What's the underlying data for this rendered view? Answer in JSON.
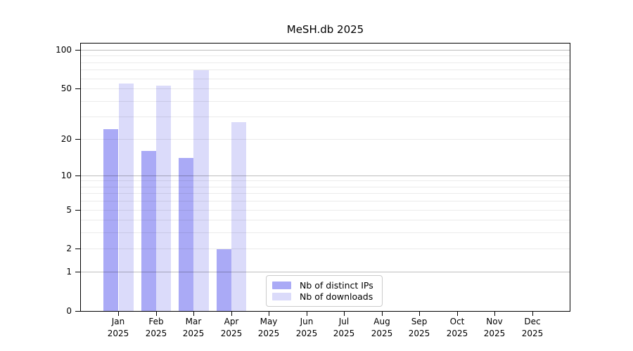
{
  "chart_data": {
    "type": "bar",
    "title": "MeSH.db 2025",
    "scale": "log1p",
    "ylim": [
      0,
      112
    ],
    "yticks": [
      0,
      1,
      2,
      5,
      10,
      20,
      50,
      100
    ],
    "grid_major_values": [
      1,
      10,
      100
    ],
    "grid_minor_values": [
      2,
      3,
      4,
      5,
      6,
      7,
      8,
      9,
      20,
      30,
      40,
      50,
      60,
      70,
      80,
      90
    ],
    "categories": [
      "Jan",
      "Feb",
      "Mar",
      "Apr",
      "May",
      "Jun",
      "Jul",
      "Aug",
      "Sep",
      "Oct",
      "Nov",
      "Dec"
    ],
    "year_label": "2025",
    "series": [
      {
        "name": "Nb of distinct IPs",
        "color": "#aaaaf6",
        "values": [
          24,
          16,
          14,
          2,
          0,
          0,
          0,
          0,
          0,
          0,
          0,
          0
        ]
      },
      {
        "name": "Nb of downloads",
        "color": "#dbdbfa",
        "values": [
          55,
          53,
          70,
          27,
          0,
          0,
          0,
          0,
          0,
          0,
          0,
          0
        ]
      }
    ],
    "legend_position": "lower-center",
    "bar_group_width_ratio": 0.8,
    "colors": {
      "spine": "#000000",
      "grid_major": "#bdbdbd",
      "grid_minor": "#ebebeb",
      "text": "#000000",
      "background": "#ffffff"
    }
  }
}
